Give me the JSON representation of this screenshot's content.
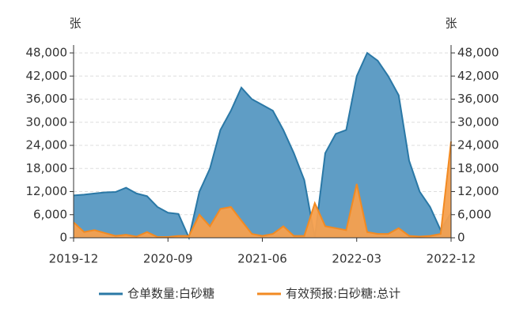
{
  "chart_data": {
    "type": "area",
    "y_unit": "张",
    "y2_unit": "张",
    "categories": [
      "2019-12",
      "2020-01",
      "2020-02",
      "2020-03",
      "2020-04",
      "2020-05",
      "2020-06",
      "2020-07",
      "2020-08",
      "2020-09",
      "2020-10",
      "2020-11",
      "2020-12",
      "2021-01",
      "2021-02",
      "2021-03",
      "2021-04",
      "2021-05",
      "2021-06",
      "2021-07",
      "2021-08",
      "2021-09",
      "2021-10",
      "2021-11",
      "2021-12",
      "2022-01",
      "2022-02",
      "2022-03",
      "2022-04",
      "2022-05",
      "2022-06",
      "2022-07",
      "2022-08",
      "2022-09",
      "2022-10",
      "2022-11",
      "2022-12"
    ],
    "xticks": [
      "2019-12",
      "2020-09",
      "2021-06",
      "2022-03",
      "2022-12"
    ],
    "series": [
      {
        "name": "仓单数量:白砂糖",
        "color": "#2a78a6",
        "fill": "#5f9dc5",
        "values": [
          11000,
          11200,
          11500,
          11800,
          11900,
          13000,
          11500,
          10800,
          8000,
          6500,
          6200,
          0,
          12000,
          18000,
          28000,
          33000,
          39000,
          36000,
          34500,
          33000,
          28000,
          22000,
          15000,
          0,
          22000,
          27000,
          28000,
          42000,
          48000,
          46000,
          42000,
          37000,
          20000,
          12000,
          8000,
          2000,
          6500
        ]
      },
      {
        "name": "有效预报:白砂糖:总计",
        "color": "#f28a22",
        "fill": "#f5a04e",
        "axis": "y2",
        "values": [
          4000,
          1500,
          2000,
          1200,
          500,
          800,
          300,
          1500,
          200,
          200,
          500,
          500,
          6000,
          3000,
          7500,
          8000,
          4500,
          1000,
          500,
          1000,
          3000,
          500,
          500,
          9000,
          3000,
          2500,
          2000,
          14000,
          1500,
          1000,
          1000,
          2500,
          500,
          300,
          500,
          1000,
          25000
        ]
      }
    ],
    "ylim": [
      0,
      48000
    ],
    "yticks": [
      0,
      {
        "value": 6000,
        "label": "6,000"
      },
      {
        "value": 12000,
        "label": "12,000"
      },
      {
        "value": 18000,
        "label": "18,000"
      },
      {
        "value": 24000,
        "label": "24,000"
      },
      {
        "value": 30000,
        "label": "30,000"
      },
      {
        "value": 36000,
        "label": "36,000"
      },
      {
        "value": 42000,
        "label": "42,000"
      },
      {
        "value": 48000,
        "label": "48,000"
      }
    ],
    "y2lim": [
      0,
      48000
    ],
    "y2ticks": [
      0,
      {
        "value": 6000,
        "label": "6,000"
      },
      {
        "value": 12000,
        "label": "12,000"
      },
      {
        "value": 18000,
        "label": "18,000"
      },
      {
        "value": 24000,
        "label": "24,000"
      },
      {
        "value": 30000,
        "label": "30,000"
      },
      {
        "value": 36000,
        "label": "36,000"
      },
      {
        "value": 42000,
        "label": "42,000"
      },
      {
        "value": 48000,
        "label": "48,000"
      }
    ],
    "grid": true,
    "legend": "bottom"
  }
}
